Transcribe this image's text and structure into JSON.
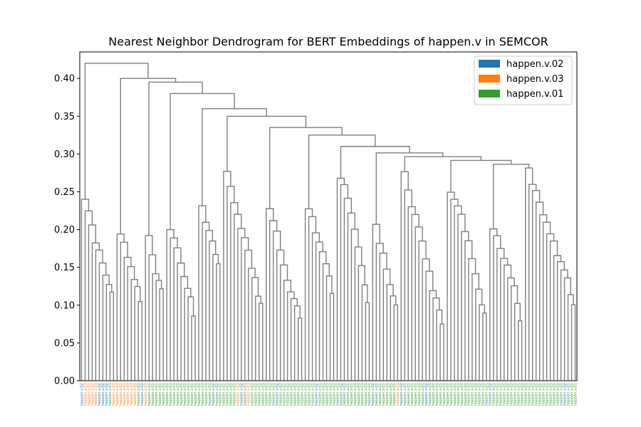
{
  "chart_data": {
    "type": "dendrogram",
    "title": "Nearest Neighbor Dendrogram for BERT Embeddings of happen.v in SEMCOR",
    "xlabel": "",
    "ylabel": "",
    "ylim": [
      0,
      0.435
    ],
    "yticks": [
      "0.00",
      "0.05",
      "0.10",
      "0.15",
      "0.20",
      "0.25",
      "0.30",
      "0.35",
      "0.40"
    ],
    "link_color": "#7f7f7f",
    "grid": false,
    "legend_position": "top-right",
    "legend": [
      {
        "label": "happen.v.02",
        "color": "#1f77b4"
      },
      {
        "label": "happen.v.03",
        "color": "#ff7f0e"
      },
      {
        "label": "happen.v.01",
        "color": "#2ca02c"
      }
    ],
    "label_texts": {
      "happen.v.02": "happen.v.02",
      "happen.v.03": "happen.v.03",
      "happen.v.01": "happen.v.01"
    },
    "leaf_senses": [
      "happen.v.02",
      "happen.v.03",
      "happen.v.03",
      "happen.v.03",
      "happen.v.03",
      "happen.v.02",
      "happen.v.02",
      "happen.v.02",
      "happen.v.01",
      "happen.v.03",
      "happen.v.03",
      "happen.v.03",
      "happen.v.03",
      "happen.v.03",
      "happen.v.03",
      "happen.v.03",
      "happen.v.01",
      "happen.v.02",
      "happen.v.03",
      "happen.v.01",
      "happen.v.01",
      "happen.v.01",
      "happen.v.01",
      "happen.v.01",
      "happen.v.01",
      "happen.v.01",
      "happen.v.01",
      "happen.v.01",
      "happen.v.01",
      "happen.v.01",
      "happen.v.01",
      "happen.v.01",
      "happen.v.01",
      "happen.v.01",
      "happen.v.01",
      "happen.v.01",
      "happen.v.01",
      "happen.v.02",
      "happen.v.01",
      "happen.v.01",
      "happen.v.01",
      "happen.v.01",
      "happen.v.01",
      "happen.v.01",
      "happen.v.03",
      "happen.v.02",
      "happen.v.01",
      "happen.v.03",
      "happen.v.01",
      "happen.v.01",
      "happen.v.01",
      "happen.v.01",
      "happen.v.01",
      "happen.v.01",
      "happen.v.01",
      "happen.v.02",
      "happen.v.01",
      "happen.v.01",
      "happen.v.01",
      "happen.v.01",
      "happen.v.01",
      "happen.v.01",
      "happen.v.01",
      "happen.v.01",
      "happen.v.01",
      "happen.v.01",
      "happen.v.02",
      "happen.v.01",
      "happen.v.01",
      "happen.v.01",
      "happen.v.01",
      "happen.v.01",
      "happen.v.01",
      "happen.v.02",
      "happen.v.01",
      "happen.v.01",
      "happen.v.01",
      "happen.v.01",
      "happen.v.01",
      "happen.v.01",
      "happen.v.01",
      "happen.v.01",
      "happen.v.02",
      "happen.v.01",
      "happen.v.01",
      "happen.v.01",
      "happen.v.01",
      "happen.v.01",
      "happen.v.01",
      "happen.v.03",
      "happen.v.02",
      "happen.v.01",
      "happen.v.01",
      "happen.v.01",
      "happen.v.01",
      "happen.v.01",
      "happen.v.01",
      "happen.v.02",
      "happen.v.01",
      "happen.v.01",
      "happen.v.01",
      "happen.v.01",
      "happen.v.01",
      "happen.v.01",
      "happen.v.01",
      "happen.v.01",
      "happen.v.01",
      "happen.v.01",
      "happen.v.01",
      "happen.v.01",
      "happen.v.01",
      "happen.v.01",
      "happen.v.01",
      "happen.v.01",
      "happen.v.01",
      "happen.v.02",
      "happen.v.01",
      "happen.v.01",
      "happen.v.01",
      "happen.v.01",
      "happen.v.01",
      "happen.v.01",
      "happen.v.01",
      "happen.v.01",
      "happen.v.01",
      "happen.v.01",
      "happen.v.01",
      "happen.v.01",
      "happen.v.01",
      "happen.v.01",
      "happen.v.01",
      "happen.v.01",
      "happen.v.01",
      "happen.v.01",
      "happen.v.01",
      "happen.v.01",
      "happen.v.02",
      "happen.v.01",
      "happen.v.01",
      "happen.v.01"
    ]
  }
}
